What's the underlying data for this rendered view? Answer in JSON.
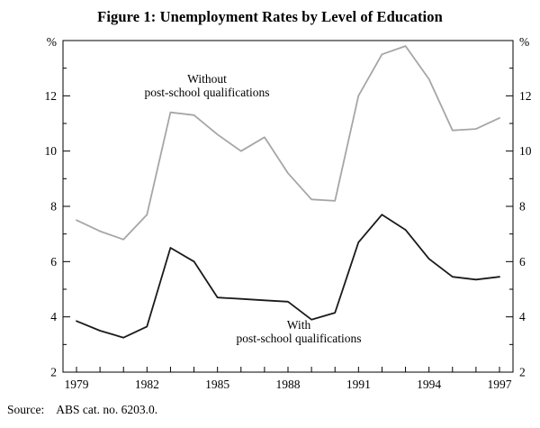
{
  "figure": {
    "title": "Figure 1: Unemployment Rates by Level of Education"
  },
  "footer": {
    "source_label": "Source:",
    "source_value": "ABS cat. no. 6203.0."
  },
  "chart_data": {
    "type": "line",
    "title": "Figure 1: Unemployment Rates by Level of Education",
    "x": [
      1979,
      1980,
      1981,
      1982,
      1983,
      1984,
      1985,
      1986,
      1987,
      1988,
      1989,
      1990,
      1991,
      1992,
      1993,
      1994,
      1995,
      1996,
      1997
    ],
    "x_tick_labels": [
      "1979",
      "1982",
      "1985",
      "1988",
      "1991",
      "1994",
      "1997"
    ],
    "ylim": [
      2,
      14
    ],
    "y_tick_step_major": 2,
    "y_tick_step_minor": 1,
    "y_tick_labels": [
      "2",
      "4",
      "6",
      "8",
      "10",
      "12"
    ],
    "y_unit": "%",
    "grid": false,
    "frame": true,
    "legend": "none (in-plot annotations)",
    "series": [
      {
        "name": "Without post-school qualifications",
        "color": "#a6a6a6",
        "values": [
          7.5,
          7.1,
          6.8,
          7.7,
          11.4,
          11.3,
          10.6,
          10.0,
          10.5,
          9.2,
          8.25,
          8.2,
          12.0,
          13.5,
          13.8,
          12.6,
          10.75,
          10.8,
          11.2
        ]
      },
      {
        "name": "With post-school qualifications",
        "color": "#1a1a1a",
        "values": [
          3.85,
          3.5,
          3.25,
          3.65,
          6.5,
          6.0,
          4.7,
          4.65,
          4.6,
          4.55,
          3.9,
          4.15,
          6.7,
          7.7,
          7.15,
          6.1,
          5.45,
          5.35,
          5.45
        ]
      }
    ],
    "annotations": [
      {
        "text": "Without\npost-school qualifications",
        "series": "Without post-school qualifications"
      },
      {
        "text": "With\npost-school qualifications",
        "series": "With post-school qualifications"
      }
    ],
    "source": "Source: ABS cat. no. 6203.0."
  }
}
